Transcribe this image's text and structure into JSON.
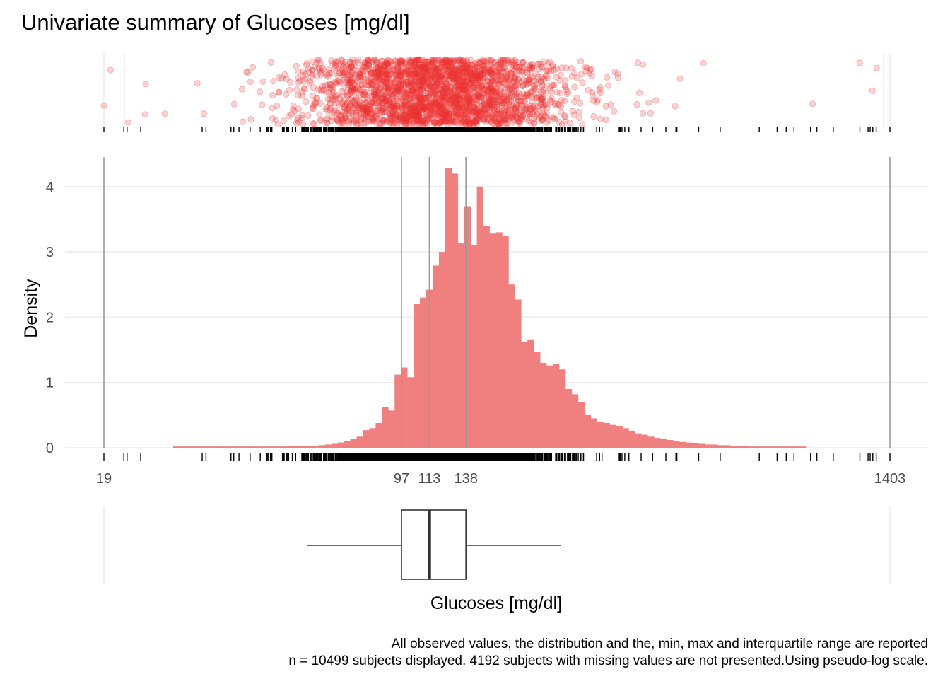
{
  "chart_data": [
    {
      "panel": "jittered-observations",
      "type": "scatter",
      "title": "Univariate summary of Glucoses [mg/dl]",
      "point_color": "#EF3333",
      "x_range": [
        19,
        1403
      ],
      "scale": "pseudo-log",
      "grid": true
    },
    {
      "panel": "histogram",
      "type": "bar",
      "ylabel": "Density",
      "xlabel": "Glucoses [mg/dl]",
      "bar_color": "#F08080",
      "y_ticks": [
        "0",
        "1",
        "2",
        "3",
        "4"
      ],
      "ylim": [
        0,
        4.4
      ],
      "x_ticks": [
        "19",
        "97",
        "113",
        "138",
        "1403"
      ],
      "x_tick_values": [
        19,
        97,
        113,
        138,
        1403
      ],
      "scale": "pseudo-log",
      "grid": true,
      "bins": {
        "description": "density by glucose bin (pseudo-log bins)",
        "densities": [
          0.02,
          0.02,
          0.02,
          0.02,
          0.02,
          0.02,
          0.02,
          0.02,
          0.02,
          0.02,
          0.02,
          0.02,
          0.02,
          0.02,
          0.02,
          0.02,
          0.02,
          0.02,
          0.03,
          0.03,
          0.03,
          0.03,
          0.03,
          0.04,
          0.05,
          0.06,
          0.08,
          0.1,
          0.13,
          0.17,
          0.27,
          0.3,
          0.38,
          0.62,
          0.57,
          1.12,
          1.23,
          1.08,
          2.2,
          2.3,
          2.42,
          2.79,
          3.0,
          4.28,
          4.2,
          3.13,
          3.7,
          3.1,
          4.0,
          3.4,
          3.28,
          3.3,
          3.25,
          2.5,
          2.27,
          1.62,
          1.66,
          1.47,
          1.3,
          1.26,
          1.28,
          1.2,
          0.9,
          0.82,
          0.7,
          0.5,
          0.45,
          0.4,
          0.38,
          0.35,
          0.33,
          0.3,
          0.25,
          0.22,
          0.2,
          0.17,
          0.15,
          0.13,
          0.12,
          0.1,
          0.09,
          0.08,
          0.07,
          0.06,
          0.05,
          0.05,
          0.04,
          0.04,
          0.03,
          0.03,
          0.03,
          0.02,
          0.02,
          0.02,
          0.02,
          0.02,
          0.02,
          0.02,
          0.02,
          0.02
        ]
      }
    },
    {
      "panel": "boxplot",
      "type": "box",
      "min": 19,
      "q1": 97,
      "median": 113,
      "q3": 138,
      "max": 1403
    }
  ],
  "caption": {
    "line1": "All observed values, the distribution and the, min, max and interquartile range are reported",
    "line2": "n = 10499 subjects displayed. 4192 subjects with missing values are not presented.Using pseudo-log scale."
  }
}
